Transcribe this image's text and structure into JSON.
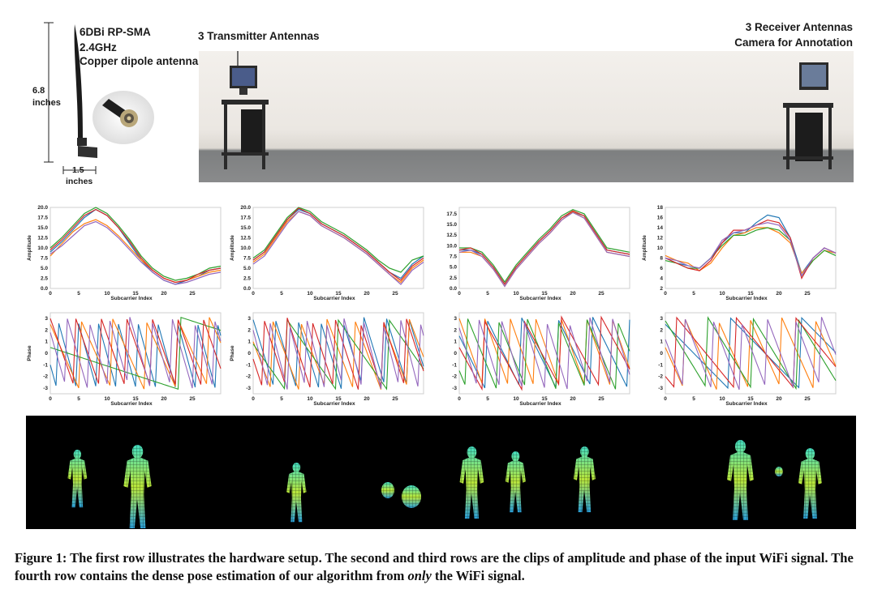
{
  "hardware": {
    "antenna_spec_1": "6DBi RP-SMA",
    "antenna_spec_2": "2.4GHz",
    "antenna_spec_3": "Copper dipole antenna",
    "height_value": "6.8",
    "height_unit": "inches",
    "width_value": "1.5",
    "width_unit": "inches",
    "transmitter_label": "3 Transmitter Antennas",
    "receiver_label_1": "3 Receiver Antennas",
    "receiver_label_2": "Camera for Annotation"
  },
  "plot_axes": {
    "x_label": "Subcarrier Index",
    "amp_y_label": "Amplitude",
    "phase_y_label": "Phase"
  },
  "colors": [
    "#1f77b4",
    "#ff7f0e",
    "#2ca02c",
    "#d62728",
    "#9467bd"
  ],
  "chart_data": [
    {
      "type": "line",
      "panel": "amplitude-1",
      "xlabel": "Subcarrier Index",
      "ylabel": "Amplitude",
      "xlim": [
        0,
        30
      ],
      "ylim": [
        0,
        20
      ],
      "xticks": [
        "0",
        "5",
        "10",
        "15",
        "20",
        "25"
      ],
      "yticks": [
        "0.0",
        "2.5",
        "5.0",
        "7.5",
        "10.0",
        "12.5",
        "15.0",
        "17.5",
        "20.0"
      ],
      "x": [
        0,
        2,
        4,
        6,
        8,
        10,
        12,
        14,
        16,
        18,
        20,
        22,
        24,
        26,
        28,
        30
      ],
      "series": [
        {
          "values": [
            9,
            11.5,
            14.5,
            17.5,
            19.5,
            18,
            15,
            11,
            7,
            4,
            2,
            1,
            2,
            3,
            4.5,
            5
          ]
        },
        {
          "values": [
            8,
            11,
            14,
            16,
            17,
            15.5,
            13,
            10,
            7,
            4.5,
            2.5,
            1.5,
            2,
            3,
            4,
            4.5
          ]
        },
        {
          "values": [
            10,
            12.5,
            15.5,
            18.5,
            20,
            18.5,
            15.5,
            12,
            8,
            5,
            3,
            2,
            2.5,
            3.5,
            5,
            5.5
          ]
        },
        {
          "values": [
            9.5,
            12,
            15,
            18,
            19.5,
            18,
            15,
            11.5,
            7.5,
            4.5,
            2.5,
            1.5,
            2,
            3.5,
            4.5,
            5
          ]
        },
        {
          "values": [
            8.5,
            10.5,
            13,
            15.5,
            16.5,
            15,
            12.5,
            9.5,
            6.5,
            4,
            2,
            1,
            1.5,
            2.5,
            3.5,
            4
          ]
        }
      ]
    },
    {
      "type": "line",
      "panel": "amplitude-2",
      "xlabel": "Subcarrier Index",
      "ylabel": "Amplitude",
      "xlim": [
        0,
        30
      ],
      "ylim": [
        0,
        20
      ],
      "xticks": [
        "0",
        "5",
        "10",
        "15",
        "20",
        "25"
      ],
      "yticks": [
        "0.0",
        "2.5",
        "5.0",
        "7.5",
        "10.0",
        "12.5",
        "15.0",
        "17.5",
        "20.0"
      ],
      "x": [
        0,
        2,
        4,
        6,
        8,
        10,
        12,
        14,
        16,
        18,
        20,
        22,
        24,
        26,
        28,
        30
      ],
      "series": [
        {
          "values": [
            7,
            9,
            13,
            17,
            19.5,
            18.5,
            16,
            14.5,
            13,
            11,
            9,
            6.5,
            4,
            2.5,
            6,
            8
          ]
        },
        {
          "values": [
            6.5,
            8.5,
            12.5,
            16.5,
            19,
            18,
            15.5,
            14,
            12.5,
            10.5,
            8.5,
            6,
            3.5,
            1.5,
            5,
            7
          ]
        },
        {
          "values": [
            7.5,
            9.5,
            13.5,
            17.5,
            20,
            19,
            16.5,
            15,
            13.5,
            11.5,
            9.5,
            7,
            5,
            4,
            7,
            8
          ]
        },
        {
          "values": [
            7,
            9,
            13,
            17,
            19.8,
            18.5,
            16,
            14.5,
            13,
            11,
            9,
            6.5,
            4,
            2,
            5.5,
            7.5
          ]
        },
        {
          "values": [
            6,
            8,
            12,
            16,
            19,
            18,
            15.5,
            14,
            12.5,
            10.5,
            8.5,
            6,
            3.5,
            1,
            4.5,
            6.5
          ]
        }
      ]
    },
    {
      "type": "line",
      "panel": "amplitude-3",
      "xlabel": "Subcarrier Index",
      "ylabel": "",
      "xlim": [
        0,
        30
      ],
      "ylim": [
        0,
        19
      ],
      "xticks": [
        "0",
        "5",
        "10",
        "15",
        "20",
        "25"
      ],
      "yticks": [
        "0.0",
        "2.5",
        "5.0",
        "7.5",
        "10.0",
        "12.5",
        "15.0",
        "17.5"
      ],
      "x": [
        0,
        2,
        4,
        6,
        8,
        10,
        12,
        14,
        16,
        18,
        20,
        22,
        24,
        26,
        28,
        30
      ],
      "series": [
        {
          "values": [
            9,
            9,
            8,
            5,
            1,
            5,
            8,
            11,
            13.5,
            16.5,
            18,
            17,
            13,
            9,
            8.5,
            8
          ]
        },
        {
          "values": [
            8.5,
            8.5,
            7.5,
            4.5,
            0.5,
            4.5,
            7.5,
            10.5,
            13,
            16,
            18,
            16.5,
            12.5,
            8.5,
            8,
            7.5
          ]
        },
        {
          "values": [
            9.5,
            9.5,
            8.5,
            5.5,
            1.5,
            5.5,
            8.5,
            11.5,
            14,
            17,
            18.5,
            17.5,
            13.5,
            9.5,
            9,
            8.5
          ]
        },
        {
          "values": [
            9,
            9.5,
            8,
            5,
            1,
            5,
            8,
            11,
            13.5,
            16.5,
            18.2,
            17,
            13,
            9,
            8.5,
            8
          ]
        },
        {
          "values": [
            8.5,
            9,
            7.5,
            4.5,
            0.5,
            4.5,
            7.5,
            10.5,
            13,
            16,
            17.8,
            16.5,
            12.5,
            8.5,
            8,
            7.5
          ]
        }
      ]
    },
    {
      "type": "line",
      "panel": "amplitude-4",
      "xlabel": "Subcarrier Index",
      "ylabel": "Amplitude",
      "xlim": [
        0,
        30
      ],
      "ylim": [
        2,
        18
      ],
      "xticks": [
        "0",
        "5",
        "10",
        "15",
        "20",
        "25"
      ],
      "yticks": [
        "2",
        "4",
        "6",
        "8",
        "10",
        "12",
        "14",
        "16",
        "18"
      ],
      "x": [
        0,
        2,
        4,
        6,
        8,
        10,
        12,
        14,
        16,
        18,
        20,
        22,
        24,
        26,
        28,
        30
      ],
      "series": [
        {
          "values": [
            8,
            7,
            6.5,
            6,
            8,
            11,
            13,
            13,
            15,
            16.5,
            16,
            12,
            5,
            8,
            10,
            9
          ]
        },
        {
          "values": [
            8.5,
            7.5,
            7,
            5.5,
            7,
            10,
            12.5,
            13,
            14,
            14,
            13,
            11,
            5,
            7.5,
            9.5,
            9
          ]
        },
        {
          "values": [
            7.5,
            7,
            6,
            6,
            8,
            10.5,
            12.5,
            12.5,
            13.5,
            14,
            13.5,
            11.5,
            4.5,
            7.5,
            9.5,
            8.5
          ]
        },
        {
          "values": [
            8,
            7,
            6,
            5.5,
            7.5,
            11,
            13.5,
            13.5,
            14.5,
            15.5,
            15,
            12,
            4,
            8,
            10,
            9
          ]
        },
        {
          "values": [
            8,
            7.5,
            6.5,
            6,
            8,
            11.5,
            13,
            13.5,
            14.5,
            15,
            14.5,
            11.5,
            4.5,
            8,
            10,
            9
          ]
        }
      ]
    },
    {
      "type": "line",
      "panel": "phase-1",
      "xlabel": "Subcarrier Index",
      "ylabel": "Phase",
      "xlim": [
        0,
        30
      ],
      "ylim": [
        -3.5,
        3.5
      ],
      "xticks": [
        "0",
        "5",
        "10",
        "15",
        "20",
        "25"
      ],
      "yticks": [
        "-3",
        "-2",
        "-1",
        "0",
        "1",
        "2",
        "3"
      ]
    },
    {
      "type": "line",
      "panel": "phase-2",
      "xlabel": "Subcarrier Index",
      "ylabel": "Phase",
      "xlim": [
        0,
        30
      ],
      "ylim": [
        -3.5,
        3.5
      ],
      "xticks": [
        "0",
        "5",
        "10",
        "15",
        "20",
        "25"
      ],
      "yticks": [
        "-3",
        "-2",
        "-1",
        "0",
        "1",
        "2",
        "3"
      ]
    },
    {
      "type": "line",
      "panel": "phase-3",
      "xlabel": "Subcarrier Index",
      "ylabel": "",
      "xlim": [
        0,
        30
      ],
      "ylim": [
        -3.5,
        3.5
      ],
      "xticks": [
        "0",
        "5",
        "10",
        "15",
        "20",
        "25"
      ],
      "yticks": [
        "-3",
        "-2",
        "-1",
        "0",
        "1",
        "2",
        "3"
      ]
    },
    {
      "type": "line",
      "panel": "phase-4",
      "xlabel": "Subcarrier Index",
      "ylabel": "",
      "xlim": [
        0,
        30
      ],
      "ylim": [
        -3.5,
        3.5
      ],
      "xticks": [
        "0",
        "5",
        "10",
        "15",
        "20",
        "25"
      ],
      "yticks": [
        "-3",
        "-2",
        "-1",
        "0",
        "1",
        "2",
        "3"
      ]
    }
  ],
  "caption": {
    "prefix": "Figure 1: The first row illustrates the hardware setup. The second and third rows are the clips of amplitude and phase of the input WiFi signal. The fourth row contains the dense pose estimation of our algorithm from ",
    "emphasis": "only",
    "suffix": " the WiFi signal."
  }
}
